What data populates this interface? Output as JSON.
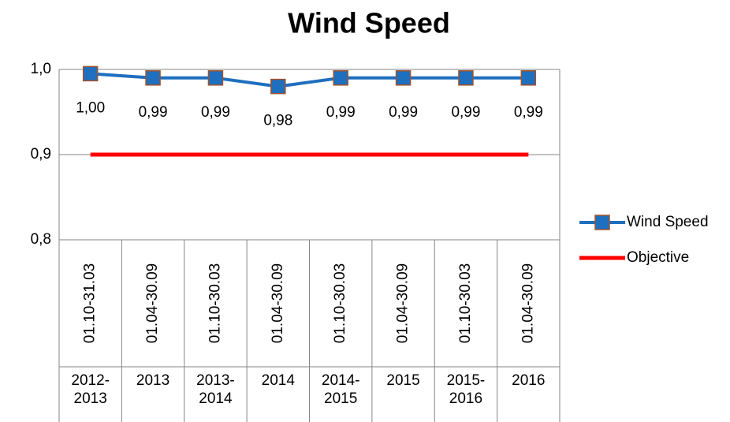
{
  "chart_data": {
    "type": "line",
    "title": "Wind Speed",
    "categories": [
      "01.10-31.03",
      "01.04-30.09",
      "01.10-30.03",
      "01.04-30.09",
      "01.10-30.03",
      "01.04-30.09",
      "01.10-30.03",
      "01.04-30.09"
    ],
    "category_groups": [
      "2012-2013",
      "2013",
      "2013-2014",
      "2014",
      "2014-2015",
      "2015",
      "2015-2016",
      "2016"
    ],
    "series": [
      {
        "name": "Wind Speed",
        "color": "#1f6fbf",
        "marker": "square",
        "values": [
          0.995,
          0.99,
          0.99,
          0.98,
          0.99,
          0.99,
          0.99,
          0.99
        ],
        "value_labels": [
          "1,00",
          "0,99",
          "0,99",
          "0,98",
          "0,99",
          "0,99",
          "0,99",
          "0,99"
        ]
      },
      {
        "name": "Objective",
        "color": "#ff0000",
        "values": [
          0.9,
          0.9,
          0.9,
          0.9,
          0.9,
          0.9,
          0.9,
          0.9
        ]
      }
    ],
    "ylim": [
      0.8,
      1.0
    ],
    "yticks": [
      {
        "value": 0.8,
        "label": "0,8"
      },
      {
        "value": 0.9,
        "label": "0,9"
      },
      {
        "value": 1.0,
        "label": "1,0"
      }
    ],
    "grid": true,
    "legend": "right"
  }
}
